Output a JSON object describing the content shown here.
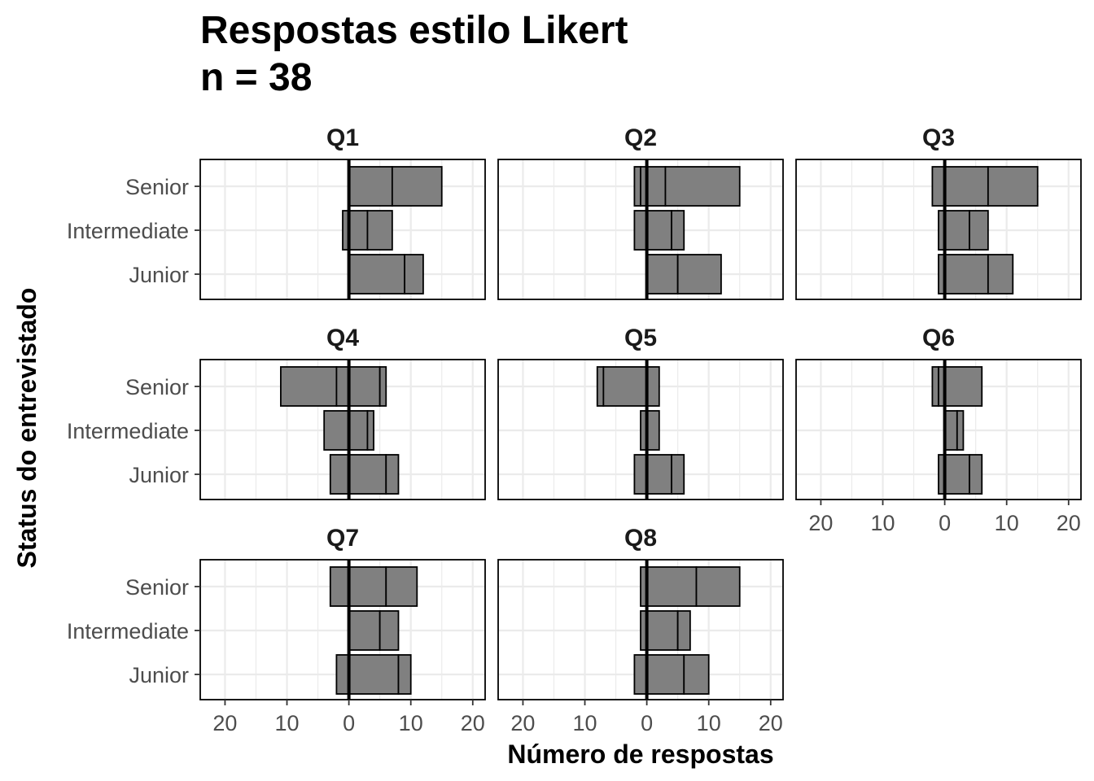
{
  "chart_data": {
    "type": "bar",
    "title_lines": [
      "Respostas estilo Likert",
      "n = 38"
    ],
    "xlabel": "Número de respostas",
    "ylabel": "Status do entrevistado",
    "categories": [
      "Senior",
      "Intermediate",
      "Junior"
    ],
    "xlim": [
      -24,
      22
    ],
    "x_ticks": [
      -20,
      -10,
      0,
      10,
      20
    ],
    "x_tick_labels": [
      "20",
      "10",
      "0",
      "10",
      "20"
    ],
    "grid": true,
    "legend": "none",
    "colors": {
      "bar_fill": "#808080",
      "bar_border": "#000000",
      "grid": "#ebebeb",
      "zero_line": "#000000"
    },
    "panels": [
      {
        "name": "Q1",
        "segments": {
          "Senior": [
            [
              0,
              7
            ],
            [
              7,
              15
            ]
          ],
          "Intermediate": [
            [
              -1,
              0
            ],
            [
              0,
              3
            ],
            [
              3,
              7
            ]
          ],
          "Junior": [
            [
              0,
              9
            ],
            [
              9,
              12
            ]
          ]
        }
      },
      {
        "name": "Q2",
        "segments": {
          "Senior": [
            [
              -2,
              -1
            ],
            [
              -1,
              0
            ],
            [
              0,
              3
            ],
            [
              3,
              15
            ]
          ],
          "Intermediate": [
            [
              -2,
              0
            ],
            [
              0,
              4
            ],
            [
              4,
              6
            ]
          ],
          "Junior": [
            [
              0,
              5
            ],
            [
              5,
              12
            ]
          ]
        }
      },
      {
        "name": "Q3",
        "segments": {
          "Senior": [
            [
              -2,
              0
            ],
            [
              0,
              7
            ],
            [
              7,
              15
            ]
          ],
          "Intermediate": [
            [
              -1,
              0
            ],
            [
              0,
              4
            ],
            [
              4,
              7
            ]
          ],
          "Junior": [
            [
              -1,
              0
            ],
            [
              0,
              7
            ],
            [
              7,
              11
            ]
          ]
        }
      },
      {
        "name": "Q4",
        "segments": {
          "Senior": [
            [
              -11,
              -2
            ],
            [
              -2,
              0
            ],
            [
              0,
              5
            ],
            [
              5,
              6
            ]
          ],
          "Intermediate": [
            [
              -4,
              0
            ],
            [
              0,
              3
            ],
            [
              3,
              4
            ]
          ],
          "Junior": [
            [
              -3,
              0
            ],
            [
              0,
              6
            ],
            [
              6,
              8
            ]
          ]
        }
      },
      {
        "name": "Q5",
        "segments": {
          "Senior": [
            [
              -8,
              -7
            ],
            [
              -7,
              0
            ],
            [
              0,
              2
            ]
          ],
          "Intermediate": [
            [
              -1,
              0
            ],
            [
              0,
              2
            ]
          ],
          "Junior": [
            [
              -2,
              0
            ],
            [
              0,
              4
            ],
            [
              4,
              6
            ]
          ]
        }
      },
      {
        "name": "Q6",
        "segments": {
          "Senior": [
            [
              -2,
              -1
            ],
            [
              -1,
              0
            ],
            [
              0,
              6
            ]
          ],
          "Intermediate": [
            [
              0,
              2
            ],
            [
              2,
              3
            ]
          ],
          "Junior": [
            [
              -1,
              0
            ],
            [
              0,
              4
            ],
            [
              4,
              6
            ]
          ]
        }
      },
      {
        "name": "Q7",
        "segments": {
          "Senior": [
            [
              -3,
              0
            ],
            [
              0,
              6
            ],
            [
              6,
              11
            ]
          ],
          "Intermediate": [
            [
              0,
              5
            ],
            [
              5,
              8
            ]
          ],
          "Junior": [
            [
              -2,
              0
            ],
            [
              0,
              8
            ],
            [
              8,
              10
            ]
          ]
        }
      },
      {
        "name": "Q8",
        "segments": {
          "Senior": [
            [
              -1,
              0
            ],
            [
              0,
              8
            ],
            [
              8,
              15
            ]
          ],
          "Intermediate": [
            [
              -1,
              0
            ],
            [
              0,
              5
            ],
            [
              5,
              7
            ]
          ],
          "Junior": [
            [
              -2,
              0
            ],
            [
              0,
              6
            ],
            [
              6,
              10
            ]
          ]
        }
      }
    ]
  }
}
